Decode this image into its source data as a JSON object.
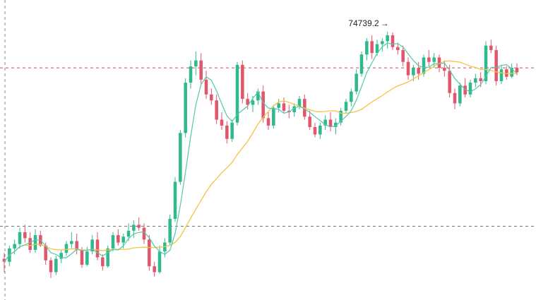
{
  "chart_data": {
    "type": "candlestick",
    "title": "",
    "xlabel": "",
    "ylabel": "",
    "ylim": [
      57000,
      76500
    ],
    "grid": false,
    "legend": "none",
    "colors": {
      "up": "#2fb98d",
      "down": "#e2566b",
      "ma_fast": "#52c7b0",
      "ma_slow": "#f5c342",
      "ref_line": "#d14a4a",
      "dash_line": "#777777"
    },
    "highest_label": "74739.2",
    "highest_arrow": "→",
    "reference_lines": [
      {
        "style": "dashed",
        "color": "#d14a4a",
        "value": 72300
      },
      {
        "style": "dashed",
        "color": "#777777",
        "value": 61600
      }
    ],
    "series": [
      {
        "kind": "ohlc",
        "values": [
          [
            59400,
            59800,
            58500,
            59200
          ],
          [
            59200,
            60300,
            58900,
            60100
          ],
          [
            60100,
            60700,
            59700,
            60400
          ],
          [
            60400,
            61500,
            60100,
            61200
          ],
          [
            61200,
            61700,
            60500,
            60800
          ],
          [
            60800,
            61200,
            59800,
            60000
          ],
          [
            60000,
            61400,
            59800,
            61000
          ],
          [
            61000,
            61300,
            60200,
            60300
          ],
          [
            60300,
            60500,
            59000,
            59300
          ],
          [
            59300,
            59500,
            58100,
            58500
          ],
          [
            58500,
            59600,
            58300,
            59400
          ],
          [
            59400,
            60000,
            59100,
            59800
          ],
          [
            59800,
            60600,
            59600,
            60400
          ],
          [
            60400,
            61200,
            60100,
            60600
          ],
          [
            60600,
            61100,
            59700,
            60000
          ],
          [
            60000,
            60200,
            58800,
            59000
          ],
          [
            59000,
            60200,
            58900,
            59900
          ],
          [
            59900,
            61000,
            59700,
            60700
          ],
          [
            60700,
            61200,
            59300,
            59500
          ],
          [
            59500,
            59700,
            58600,
            58900
          ],
          [
            58900,
            60300,
            58800,
            60100
          ],
          [
            60100,
            61200,
            59900,
            61000
          ],
          [
            61000,
            61400,
            60300,
            60500
          ],
          [
            60500,
            61100,
            60100,
            60900
          ],
          [
            60900,
            61800,
            60600,
            61300
          ],
          [
            61300,
            62000,
            60800,
            61700
          ],
          [
            61700,
            62200,
            61300,
            61500
          ],
          [
            61500,
            61800,
            60400,
            60700
          ],
          [
            60700,
            61000,
            58600,
            58900
          ],
          [
            58900,
            59200,
            58200,
            58500
          ],
          [
            58500,
            60300,
            58400,
            59900
          ],
          [
            59900,
            60800,
            59500,
            60500
          ],
          [
            60500,
            62400,
            60300,
            62100
          ],
          [
            62100,
            64900,
            61900,
            64600
          ],
          [
            64600,
            68100,
            64400,
            67900
          ],
          [
            67900,
            71600,
            67600,
            71300
          ],
          [
            71300,
            72800,
            70900,
            72400
          ],
          [
            72400,
            73400,
            71800,
            72800
          ],
          [
            72800,
            73300,
            71100,
            71500
          ],
          [
            71500,
            72100,
            70200,
            70500
          ],
          [
            70500,
            70900,
            69800,
            70100
          ],
          [
            70100,
            70500,
            68500,
            68800
          ],
          [
            68800,
            69300,
            68100,
            68400
          ],
          [
            68400,
            68700,
            67200,
            67500
          ],
          [
            67500,
            68800,
            67300,
            68600
          ],
          [
            68600,
            72700,
            68400,
            72500
          ],
          [
            72500,
            72800,
            69900,
            70200
          ],
          [
            70200,
            70600,
            69500,
            69800
          ],
          [
            69800,
            70400,
            69300,
            70100
          ],
          [
            70100,
            70900,
            69800,
            70700
          ],
          [
            70700,
            71100,
            68600,
            68900
          ],
          [
            68900,
            69300,
            68100,
            68400
          ],
          [
            68400,
            69800,
            68200,
            69600
          ],
          [
            69600,
            70200,
            69300,
            69900
          ],
          [
            69900,
            70300,
            69200,
            69400
          ],
          [
            69400,
            69800,
            68900,
            69300
          ],
          [
            69300,
            69900,
            69000,
            69700
          ],
          [
            69700,
            70400,
            69500,
            70200
          ],
          [
            70200,
            70500,
            68800,
            69000
          ],
          [
            69000,
            69400,
            68100,
            68300
          ],
          [
            68300,
            68600,
            67600,
            67800
          ],
          [
            67800,
            68600,
            67500,
            68400
          ],
          [
            68400,
            69100,
            68100,
            68800
          ],
          [
            68800,
            69300,
            68000,
            68300
          ],
          [
            68300,
            68900,
            67800,
            68600
          ],
          [
            68600,
            69600,
            68400,
            69400
          ],
          [
            69400,
            70200,
            69200,
            70000
          ],
          [
            70000,
            70900,
            69700,
            70700
          ],
          [
            70700,
            72200,
            70500,
            71900
          ],
          [
            71900,
            73400,
            71700,
            73200
          ],
          [
            73200,
            74300,
            72800,
            74100
          ],
          [
            74100,
            74500,
            72900,
            73300
          ],
          [
            73300,
            74200,
            73100,
            73900
          ],
          [
            73900,
            74300,
            73400,
            74100
          ],
          [
            74100,
            74740,
            73600,
            74500
          ],
          [
            74500,
            74700,
            73500,
            73700
          ],
          [
            73700,
            74000,
            73200,
            73500
          ],
          [
            73500,
            73800,
            72400,
            72700
          ],
          [
            72700,
            73000,
            71500,
            71800
          ],
          [
            71800,
            72500,
            71400,
            72300
          ],
          [
            72300,
            72700,
            71500,
            71900
          ],
          [
            71900,
            73200,
            71700,
            73000
          ],
          [
            73000,
            73500,
            72400,
            72700
          ],
          [
            72700,
            73300,
            72300,
            73000
          ],
          [
            73000,
            73200,
            72000,
            72300
          ],
          [
            72300,
            72800,
            71700,
            72100
          ],
          [
            72100,
            72500,
            70300,
            70600
          ],
          [
            70600,
            70900,
            69500,
            69900
          ],
          [
            69900,
            71300,
            69700,
            71100
          ],
          [
            71100,
            71600,
            70300,
            70500
          ],
          [
            70500,
            71500,
            70300,
            71300
          ],
          [
            71300,
            71900,
            71000,
            71600
          ],
          [
            71600,
            72000,
            71000,
            71400
          ],
          [
            71400,
            74100,
            71200,
            73800
          ],
          [
            73800,
            74200,
            73300,
            73500
          ],
          [
            73500,
            73800,
            71100,
            71400
          ],
          [
            71400,
            72500,
            71200,
            72200
          ],
          [
            72200,
            72400,
            71500,
            71700
          ],
          [
            71700,
            72600,
            71600,
            72300
          ],
          [
            72300,
            72600,
            71800,
            72000
          ]
        ]
      },
      {
        "name": "",
        "kind": "line",
        "role": "fast_ma"
      },
      {
        "name": "",
        "kind": "line",
        "role": "slow_ma"
      }
    ]
  }
}
